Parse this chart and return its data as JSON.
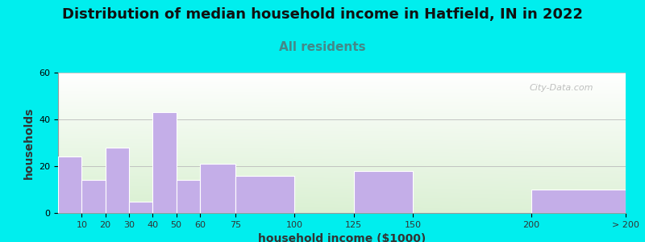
{
  "title": "Distribution of median household income in Hatfield, IN in 2022",
  "subtitle": "All residents",
  "xlabel": "household income ($1000)",
  "ylabel": "households",
  "bar_labels": [
    "10",
    "20",
    "30",
    "40",
    "50",
    "60",
    "75",
    "100",
    "125",
    "150",
    "200",
    "> 200"
  ],
  "bar_heights": [
    24,
    14,
    28,
    5,
    43,
    14,
    21,
    16,
    0,
    18,
    0,
    10
  ],
  "bar_color": "#c4aee8",
  "background_color": "#00eeee",
  "plot_bg_color_topleft": "#e0f5e0",
  "plot_bg_color_topright": "#f8f8ff",
  "plot_bg_color_bottom": "#e8f5e8",
  "ylim": [
    0,
    60
  ],
  "yticks": [
    0,
    20,
    40,
    60
  ],
  "title_fontsize": 13,
  "subtitle_fontsize": 11,
  "subtitle_color": "#448888",
  "axis_label_fontsize": 10,
  "tick_fontsize": 8,
  "watermark_text": "City-Data.com",
  "left_edges": [
    0,
    10,
    20,
    30,
    40,
    50,
    60,
    75,
    100,
    125,
    150,
    200
  ],
  "right_edges": [
    10,
    20,
    30,
    40,
    50,
    60,
    75,
    100,
    125,
    150,
    200,
    240
  ],
  "tick_positions": [
    10,
    20,
    30,
    40,
    50,
    60,
    75,
    100,
    125,
    150,
    200,
    240
  ],
  "xlim": [
    0,
    240
  ]
}
